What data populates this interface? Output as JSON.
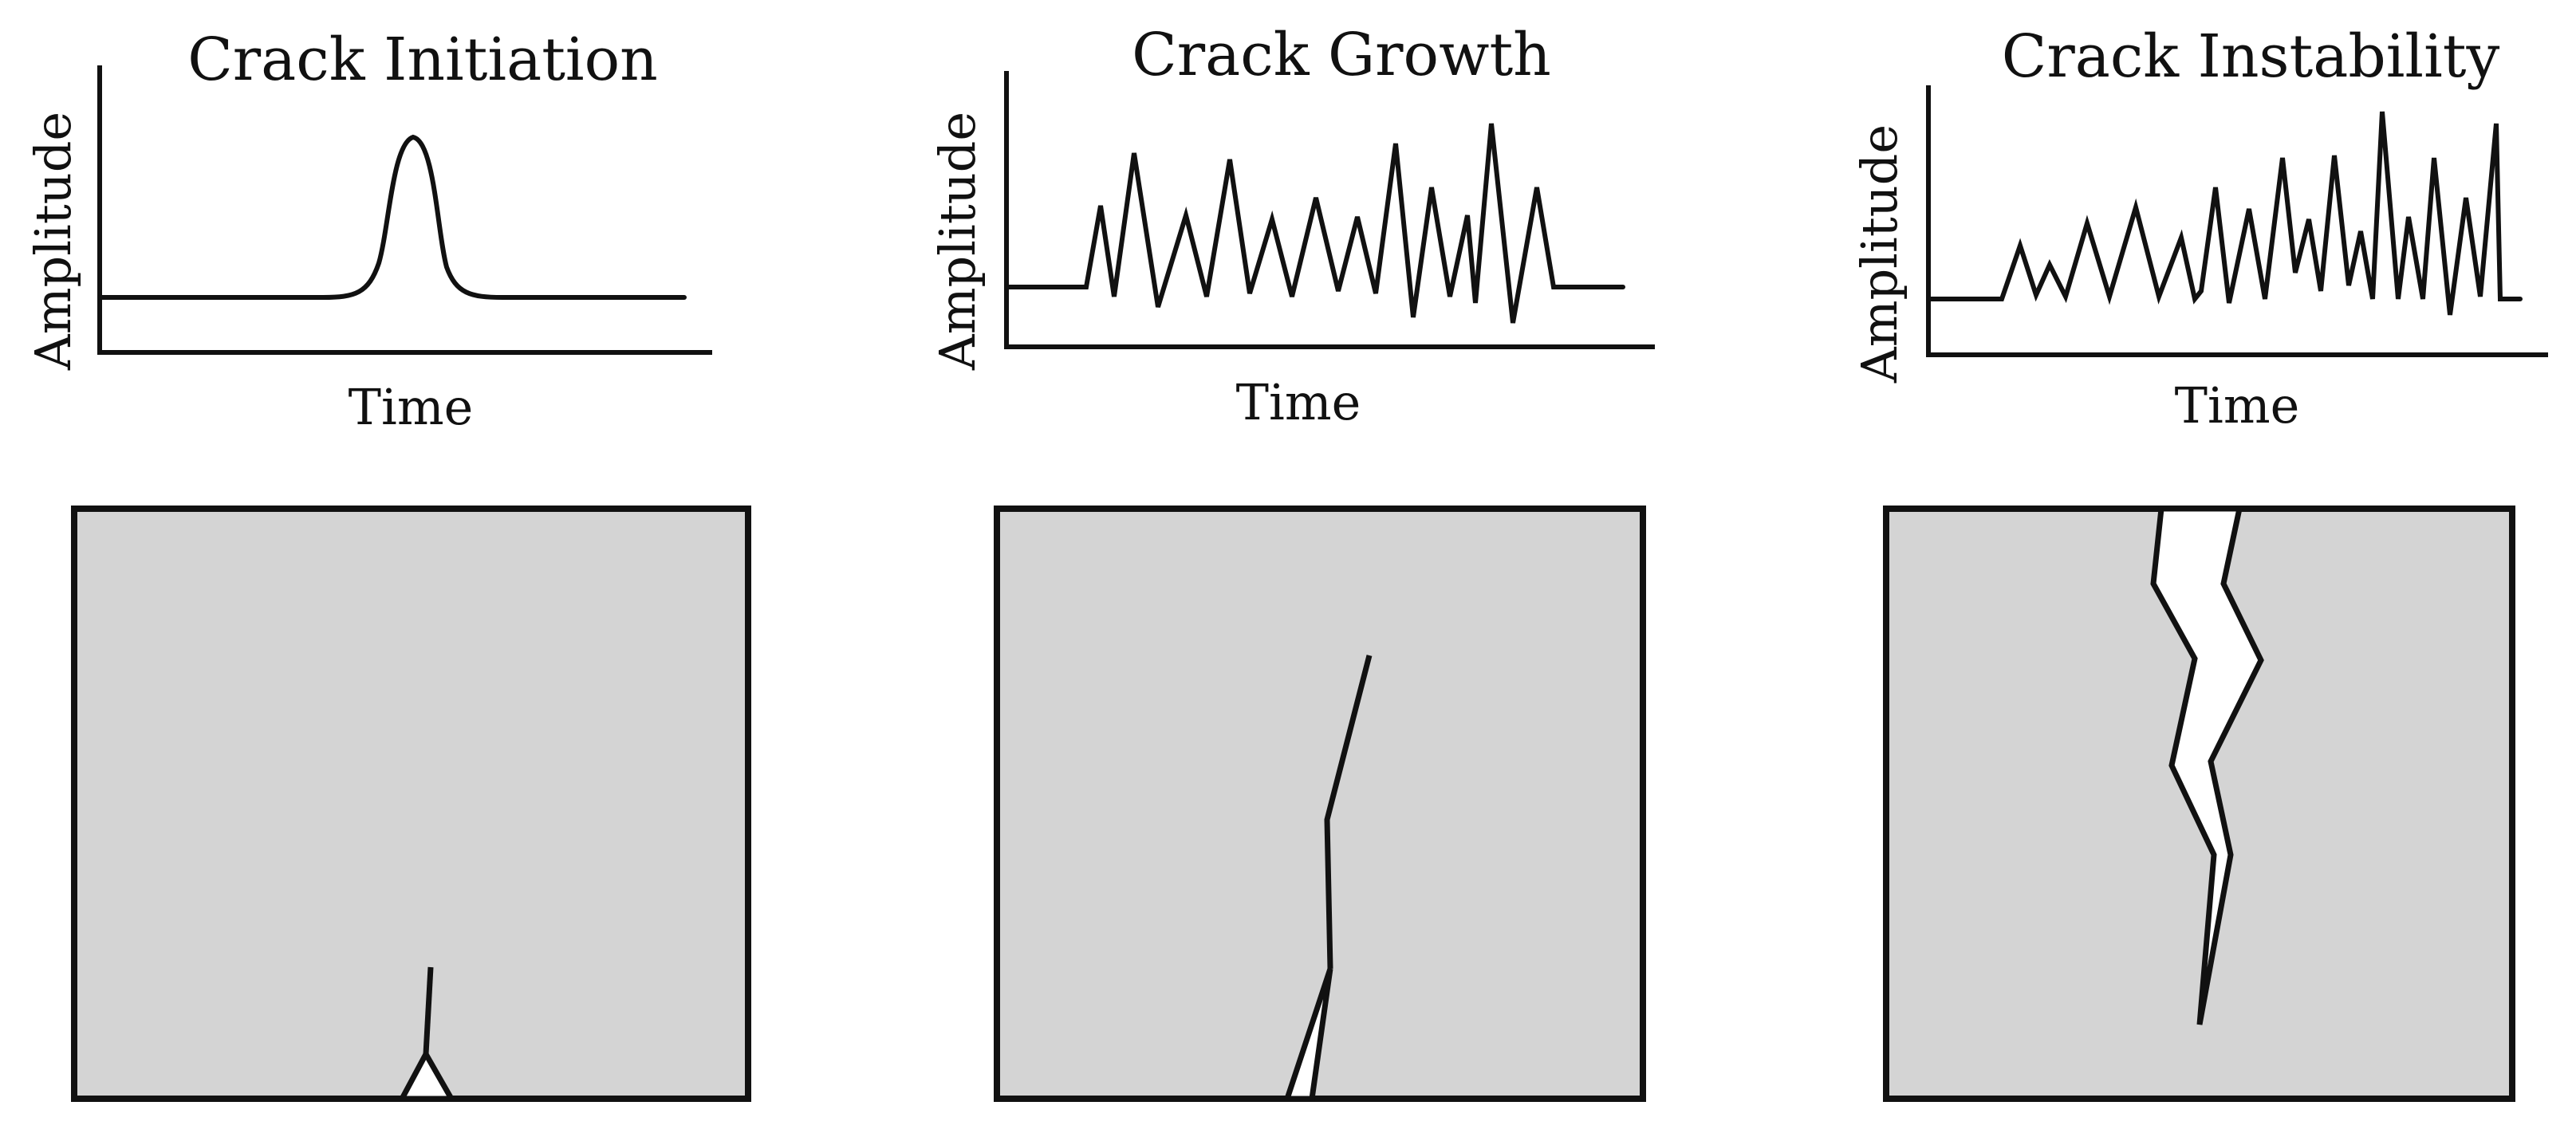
{
  "panels": [
    {
      "title": "Crack Initiation",
      "xlabel": "Time",
      "ylabel": "Amplitude"
    },
    {
      "title": "Crack Growth",
      "xlabel": "Time",
      "ylabel": "Amplitude"
    },
    {
      "title": "Crack Instability",
      "xlabel": "Time",
      "ylabel": "Amplitude"
    }
  ],
  "colors": {
    "block_fill": "#d4d4d4",
    "line": "#111111",
    "background": "#ffffff"
  }
}
